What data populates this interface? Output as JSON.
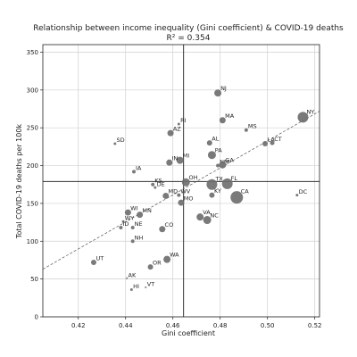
{
  "chart_data": {
    "type": "scatter",
    "title": "Relationship between income inequality (Gini coefficient) & COVID-19 deaths",
    "subtitle": "R² = 0.354",
    "xlabel": "Gini coefficient",
    "ylabel": "Total COVID-19 deaths per 100k",
    "xlim": [
      0.405,
      0.522
    ],
    "ylim": [
      0,
      360
    ],
    "xticks": [
      "0.42",
      "0.44",
      "0.46",
      "0.48",
      "0.50",
      "0.52"
    ],
    "yticks": [
      "0",
      "50",
      "100",
      "150",
      "200",
      "250",
      "300",
      "350"
    ],
    "grid": true,
    "mean_lines": {
      "x": 0.4645,
      "y": 179
    },
    "trend_line": {
      "x": [
        0.405,
        0.522
      ],
      "y": [
        63,
        272
      ]
    },
    "points": [
      {
        "label": "NJ",
        "x": 0.479,
        "y": 296,
        "size": 4
      },
      {
        "label": "MA",
        "x": 0.481,
        "y": 260,
        "size": 3.5
      },
      {
        "label": "NY",
        "x": 0.515,
        "y": 264,
        "size": 6
      },
      {
        "label": "MS",
        "x": 0.491,
        "y": 247,
        "size": 2
      },
      {
        "label": "RI",
        "x": 0.4625,
        "y": 255,
        "size": 1.5
      },
      {
        "label": "AZ",
        "x": 0.459,
        "y": 243,
        "size": 3.5
      },
      {
        "label": "LA",
        "x": 0.499,
        "y": 229,
        "size": 3
      },
      {
        "label": "CT",
        "x": 0.502,
        "y": 230,
        "size": 2.5
      },
      {
        "label": "SD",
        "x": 0.4355,
        "y": 229,
        "size": 1.5
      },
      {
        "label": "AL",
        "x": 0.4755,
        "y": 230,
        "size": 3
      },
      {
        "label": "PA",
        "x": 0.4765,
        "y": 214,
        "size": 4.5
      },
      {
        "label": "MI",
        "x": 0.463,
        "y": 207,
        "size": 4
      },
      {
        "label": "IN",
        "x": 0.4585,
        "y": 204,
        "size": 3.5
      },
      {
        "label": "IA",
        "x": 0.4435,
        "y": 192,
        "size": 2
      },
      {
        "label": "NM",
        "x": 0.479,
        "y": 200,
        "size": 2
      },
      {
        "label": "GA",
        "x": 0.481,
        "y": 201,
        "size": 4
      },
      {
        "label": "FL",
        "x": 0.483,
        "y": 176,
        "size": 6
      },
      {
        "label": "CA",
        "x": 0.487,
        "y": 158,
        "size": 7
      },
      {
        "label": "DC",
        "x": 0.5125,
        "y": 161,
        "size": 1.5
      },
      {
        "label": "TX",
        "x": 0.4765,
        "y": 175,
        "size": 6
      },
      {
        "label": "KS",
        "x": 0.4515,
        "y": 175,
        "size": 2
      },
      {
        "label": "DE",
        "x": 0.4525,
        "y": 171,
        "size": 1.5
      },
      {
        "label": "OH",
        "x": 0.4655,
        "y": 178,
        "size": 4.5
      },
      {
        "label": "KY",
        "x": 0.4765,
        "y": 161,
        "size": 3
      },
      {
        "label": "MD",
        "x": 0.457,
        "y": 160,
        "size": 3.5
      },
      {
        "label": "WV",
        "x": 0.4625,
        "y": 161,
        "size": 2
      },
      {
        "label": "MO",
        "x": 0.4635,
        "y": 151,
        "size": 3.5
      },
      {
        "label": "VA",
        "x": 0.4715,
        "y": 132,
        "size": 4
      },
      {
        "label": "NC",
        "x": 0.4745,
        "y": 128,
        "size": 4.5
      },
      {
        "label": "WI",
        "x": 0.441,
        "y": 138,
        "size": 3.5
      },
      {
        "label": "MN",
        "x": 0.446,
        "y": 135,
        "size": 3.5
      },
      {
        "label": "WY",
        "x": 0.439,
        "y": 126,
        "size": 1.5
      },
      {
        "label": "ID",
        "x": 0.438,
        "y": 118,
        "size": 2
      },
      {
        "label": "NE",
        "x": 0.443,
        "y": 118,
        "size": 2
      },
      {
        "label": "CO",
        "x": 0.4555,
        "y": 116,
        "size": 3.5
      },
      {
        "label": "NH",
        "x": 0.443,
        "y": 100,
        "size": 2
      },
      {
        "label": "UT",
        "x": 0.4265,
        "y": 72,
        "size": 3
      },
      {
        "label": "WA",
        "x": 0.4575,
        "y": 76,
        "size": 4
      },
      {
        "label": "OR",
        "x": 0.4505,
        "y": 66,
        "size": 3
      },
      {
        "label": "AK",
        "x": 0.4405,
        "y": 51,
        "size": 1
      },
      {
        "label": "HI",
        "x": 0.4425,
        "y": 36,
        "size": 1.5
      },
      {
        "label": "VT",
        "x": 0.4485,
        "y": 39,
        "size": 1
      }
    ]
  }
}
